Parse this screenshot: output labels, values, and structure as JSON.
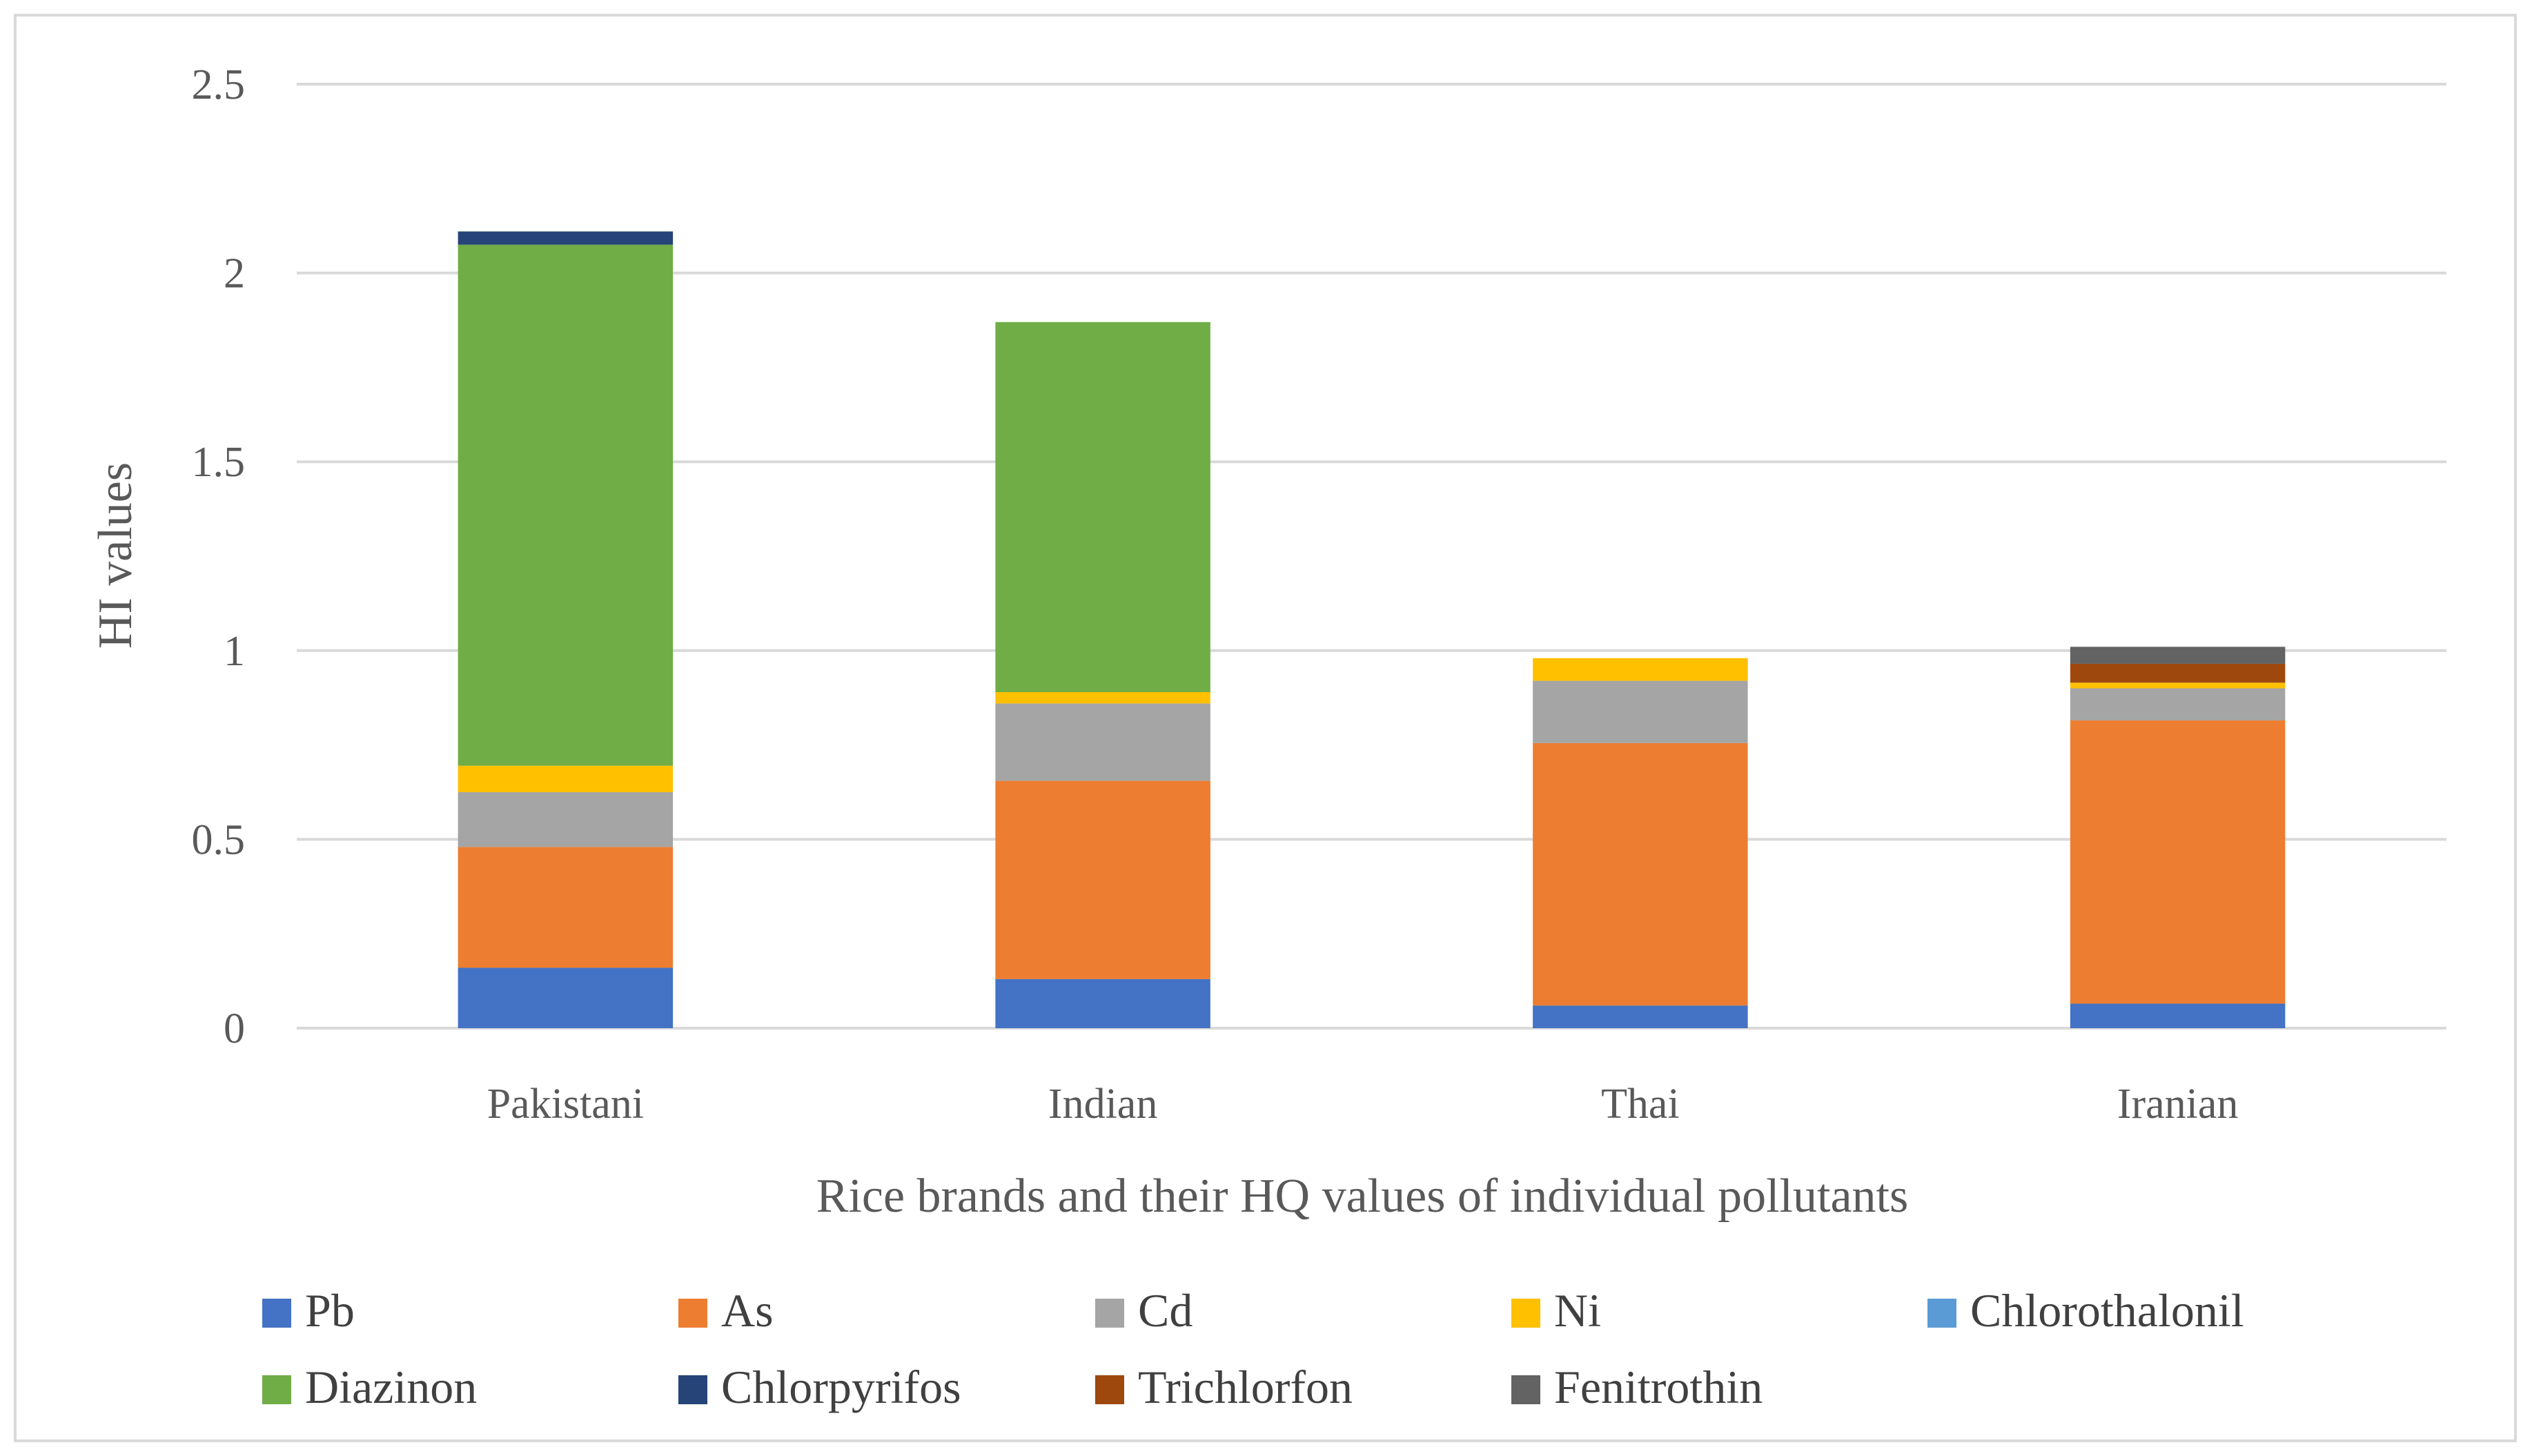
{
  "chart_data": {
    "type": "bar",
    "stacked": true,
    "title": "",
    "xlabel": "Rice brands and their HQ values of individual pollutants",
    "ylabel": "HI values",
    "ylim": [
      0,
      2.5
    ],
    "yticks": [
      0,
      0.5,
      1,
      1.5,
      2,
      2.5
    ],
    "ytick_labels": [
      "0",
      "0.5",
      "1",
      "1.5",
      "2",
      "2.5"
    ],
    "grid": true,
    "legend_position": "bottom",
    "categories": [
      "Pakistani",
      "Indian",
      "Thai",
      "Iranian"
    ],
    "series": [
      {
        "name": "Pb",
        "color": "#4472C4",
        "values": [
          0.16,
          0.13,
          0.06,
          0.065
        ]
      },
      {
        "name": "As",
        "color": "#ED7D31",
        "values": [
          0.32,
          0.525,
          0.695,
          0.75
        ]
      },
      {
        "name": "Cd",
        "color": "#A5A5A5",
        "values": [
          0.145,
          0.205,
          0.165,
          0.085
        ]
      },
      {
        "name": "Ni",
        "color": "#FFC000",
        "values": [
          0.07,
          0.03,
          0.06,
          0.015
        ]
      },
      {
        "name": "Chlorothalonil",
        "color": "#5B9BD5",
        "values": [
          0,
          0,
          0,
          0
        ]
      },
      {
        "name": "Diazinon",
        "color": "#70AD47",
        "values": [
          1.38,
          0.98,
          0,
          0
        ]
      },
      {
        "name": "Chlorpyrifos",
        "color": "#264478",
        "values": [
          0.035,
          0,
          0,
          0
        ]
      },
      {
        "name": "Trichlorfon",
        "color": "#9E480E",
        "values": [
          0,
          0,
          0,
          0.05
        ]
      },
      {
        "name": "Fenitrothin",
        "color": "#636363",
        "values": [
          0,
          0,
          0,
          0.045
        ]
      }
    ]
  }
}
